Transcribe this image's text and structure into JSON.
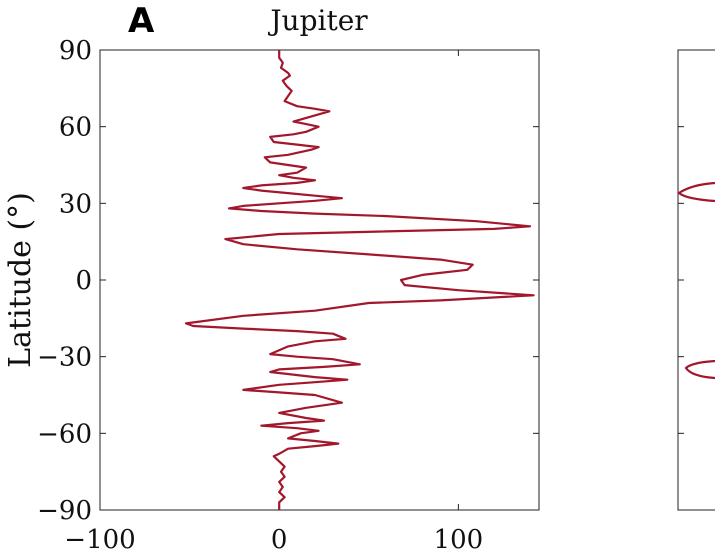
{
  "chart_data": [
    {
      "type": "line",
      "panel_label": "A",
      "title": "Jupiter",
      "xlabel": "",
      "ylabel": "Latitude (°)",
      "xlim": [
        -100,
        145
      ],
      "ylim": [
        -90,
        90
      ],
      "xticks": [
        -100,
        0,
        100
      ],
      "xtick_labels": [
        "−100",
        "0",
        "100"
      ],
      "yticks": [
        90,
        60,
        30,
        0,
        -30,
        -60,
        -90
      ],
      "ytick_labels": [
        "90",
        "60",
        "30",
        "0",
        "−30",
        "−60",
        "−90"
      ],
      "grid": false,
      "line_color": "#a3172d",
      "series": [
        {
          "points": [
            [
              0,
              90
            ],
            [
              0,
              87
            ],
            [
              2,
              85
            ],
            [
              1,
              83
            ],
            [
              3,
              82
            ],
            [
              5,
              81
            ],
            [
              6,
              80
            ],
            [
              4,
              79
            ],
            [
              2,
              78
            ],
            [
              4,
              76
            ],
            [
              7,
              74
            ],
            [
              5,
              72
            ],
            [
              3,
              70
            ],
            [
              10,
              68
            ],
            [
              20,
              67
            ],
            [
              28,
              66
            ],
            [
              18,
              64
            ],
            [
              8,
              62
            ],
            [
              15,
              61
            ],
            [
              22,
              60
            ],
            [
              15,
              58
            ],
            [
              8,
              57
            ],
            [
              -5,
              56
            ],
            [
              -3,
              54
            ],
            [
              10,
              53
            ],
            [
              22,
              52
            ],
            [
              18,
              51
            ],
            [
              5,
              49
            ],
            [
              -8,
              48
            ],
            [
              -5,
              46
            ],
            [
              5,
              45
            ],
            [
              15,
              44
            ],
            [
              10,
              42
            ],
            [
              0,
              41
            ],
            [
              8,
              40
            ],
            [
              20,
              39
            ],
            [
              10,
              38
            ],
            [
              -10,
              37
            ],
            [
              -20,
              36
            ],
            [
              -10,
              35
            ],
            [
              5,
              34
            ],
            [
              20,
              33
            ],
            [
              35,
              32
            ],
            [
              20,
              31
            ],
            [
              0,
              30
            ],
            [
              -20,
              29
            ],
            [
              -28,
              28
            ],
            [
              -10,
              27
            ],
            [
              20,
              26
            ],
            [
              60,
              25
            ],
            [
              110,
              23
            ],
            [
              140,
              21
            ],
            [
              120,
              20
            ],
            [
              60,
              19
            ],
            [
              0,
              18
            ],
            [
              -30,
              16
            ],
            [
              -20,
              14
            ],
            [
              10,
              12
            ],
            [
              50,
              10
            ],
            [
              90,
              8
            ],
            [
              108,
              6
            ],
            [
              105,
              4
            ],
            [
              80,
              2
            ],
            [
              68,
              0
            ],
            [
              70,
              -2
            ],
            [
              100,
              -4
            ],
            [
              142,
              -6
            ],
            [
              90,
              -8
            ],
            [
              50,
              -9
            ],
            [
              20,
              -12
            ],
            [
              -20,
              -14
            ],
            [
              -52,
              -17
            ],
            [
              -48,
              -18
            ],
            [
              -20,
              -19
            ],
            [
              10,
              -20
            ],
            [
              30,
              -21
            ],
            [
              37,
              -23
            ],
            [
              20,
              -24
            ],
            [
              5,
              -26
            ],
            [
              -5,
              -29
            ],
            [
              10,
              -30
            ],
            [
              30,
              -31
            ],
            [
              45,
              -33
            ],
            [
              25,
              -34
            ],
            [
              0,
              -35
            ],
            [
              -5,
              -36
            ],
            [
              20,
              -38
            ],
            [
              38,
              -39
            ],
            [
              20,
              -40
            ],
            [
              0,
              -41
            ],
            [
              -20,
              -43
            ],
            [
              0,
              -44
            ],
            [
              20,
              -45
            ],
            [
              35,
              -48
            ],
            [
              15,
              -50
            ],
            [
              0,
              -52
            ],
            [
              15,
              -54
            ],
            [
              25,
              -55
            ],
            [
              5,
              -56
            ],
            [
              -10,
              -57
            ],
            [
              10,
              -58
            ],
            [
              22,
              -59
            ],
            [
              12,
              -60
            ],
            [
              5,
              -62
            ],
            [
              20,
              -63
            ],
            [
              33,
              -64
            ],
            [
              20,
              -65
            ],
            [
              5,
              -66
            ],
            [
              0,
              -68
            ],
            [
              -3,
              -69
            ],
            [
              0,
              -71
            ],
            [
              3,
              -73
            ],
            [
              1,
              -75
            ],
            [
              3,
              -77
            ],
            [
              0,
              -79
            ],
            [
              2,
              -81
            ],
            [
              0,
              -83
            ],
            [
              3,
              -85
            ],
            [
              0,
              -87
            ],
            [
              0,
              -90
            ]
          ]
        }
      ]
    },
    {
      "type": "line",
      "panel_label": "",
      "title": "",
      "xlabel": "",
      "ylabel": "",
      "partial": true,
      "yticks": [
        60,
        30,
        0,
        -30,
        -60
      ],
      "line_color": "#a3172d",
      "series": [
        {
          "points": []
        }
      ]
    }
  ]
}
